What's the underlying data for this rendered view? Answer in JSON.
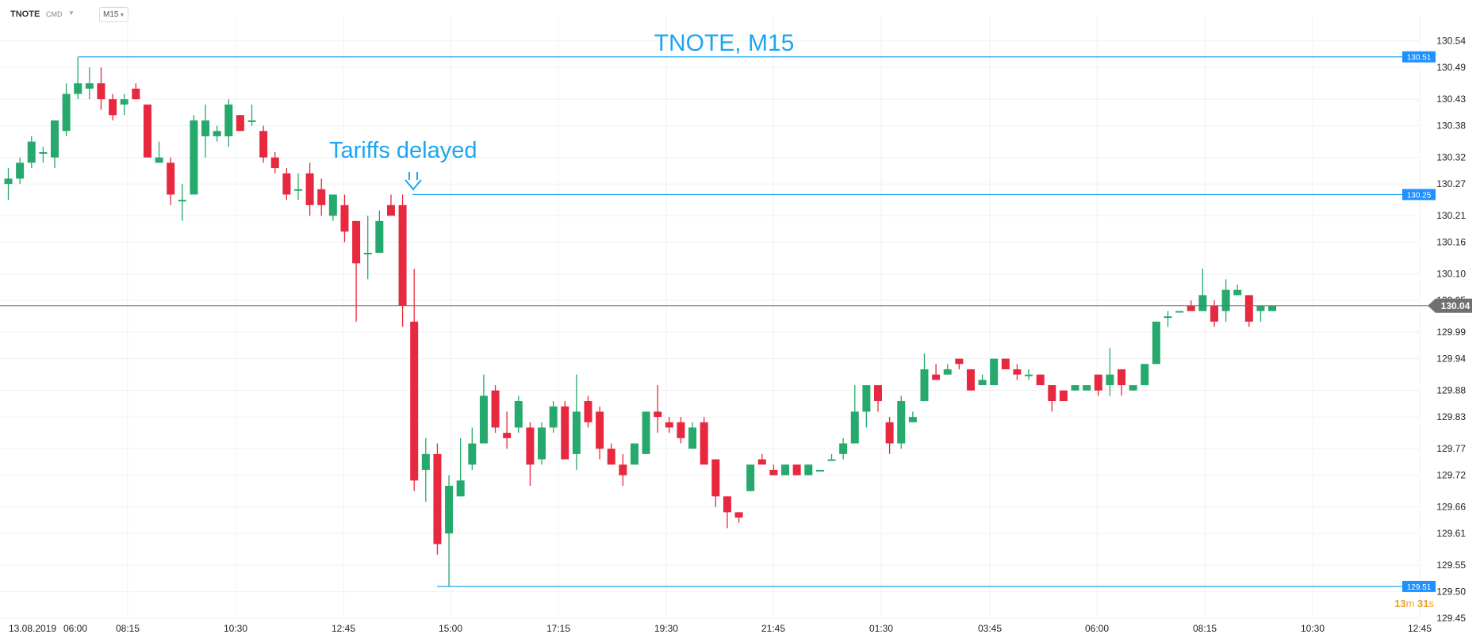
{
  "toolbar": {
    "symbol": "TNOTE",
    "market": "CMD",
    "timeframe": "M15"
  },
  "timer": {
    "minutes": "13",
    "m_unit": "m",
    "seconds": "31",
    "s_unit": "s"
  },
  "chart_data": {
    "type": "candlestick",
    "title": "TNOTE, M15",
    "ylim": [
      129.45,
      130.55
    ],
    "y_ticks": [
      "130.54",
      "130.49",
      "130.43",
      "130.38",
      "130.32",
      "130.27",
      "130.21",
      "130.16",
      "130.10",
      "130.05",
      "129.99",
      "129.94",
      "129.88",
      "129.83",
      "129.77",
      "129.72",
      "129.66",
      "129.61",
      "129.55",
      "129.50",
      "129.45"
    ],
    "x_labels": [
      "13.08.2019",
      "06:00",
      "08:15",
      "10:30",
      "12:45",
      "15:00",
      "17:15",
      "19:30",
      "21:45",
      "01:30",
      "03:45",
      "06:00",
      "08:15",
      "10:30",
      "12:45"
    ],
    "current_price": "130.04",
    "levels": [
      {
        "value": 130.51,
        "label": "130.51"
      },
      {
        "value": 130.25,
        "label": "130.25"
      },
      {
        "value": 129.51,
        "label": "129.51"
      }
    ],
    "annotation": {
      "text": "Tariffs delayed"
    },
    "colors": {
      "up": "#26a96c",
      "down": "#e8283f",
      "level": "#1ea5ef",
      "label_bg": "#1e90ff",
      "current": "#707070"
    },
    "candles": [
      {
        "o": 130.27,
        "h": 130.3,
        "l": 130.24,
        "c": 130.28
      },
      {
        "o": 130.28,
        "h": 130.32,
        "l": 130.27,
        "c": 130.31
      },
      {
        "o": 130.31,
        "h": 130.36,
        "l": 130.3,
        "c": 130.35
      },
      {
        "o": 130.33,
        "h": 130.34,
        "l": 130.31,
        "c": 130.33
      },
      {
        "o": 130.32,
        "h": 130.39,
        "l": 130.3,
        "c": 130.39
      },
      {
        "o": 130.37,
        "h": 130.46,
        "l": 130.36,
        "c": 130.44
      },
      {
        "o": 130.44,
        "h": 130.51,
        "l": 130.43,
        "c": 130.46
      },
      {
        "o": 130.45,
        "h": 130.49,
        "l": 130.43,
        "c": 130.46
      },
      {
        "o": 130.46,
        "h": 130.49,
        "l": 130.41,
        "c": 130.43
      },
      {
        "o": 130.43,
        "h": 130.44,
        "l": 130.39,
        "c": 130.4
      },
      {
        "o": 130.42,
        "h": 130.44,
        "l": 130.4,
        "c": 130.43
      },
      {
        "o": 130.45,
        "h": 130.46,
        "l": 130.43,
        "c": 130.43
      },
      {
        "o": 130.42,
        "h": 130.42,
        "l": 130.32,
        "c": 130.32
      },
      {
        "o": 130.31,
        "h": 130.35,
        "l": 130.31,
        "c": 130.32
      },
      {
        "o": 130.31,
        "h": 130.32,
        "l": 130.23,
        "c": 130.25
      },
      {
        "o": 130.24,
        "h": 130.27,
        "l": 130.2,
        "c": 130.24
      },
      {
        "o": 130.25,
        "h": 130.4,
        "l": 130.25,
        "c": 130.39
      },
      {
        "o": 130.36,
        "h": 130.42,
        "l": 130.32,
        "c": 130.39
      },
      {
        "o": 130.36,
        "h": 130.38,
        "l": 130.35,
        "c": 130.37
      },
      {
        "o": 130.36,
        "h": 130.43,
        "l": 130.34,
        "c": 130.42
      },
      {
        "o": 130.4,
        "h": 130.4,
        "l": 130.37,
        "c": 130.37
      },
      {
        "o": 130.39,
        "h": 130.42,
        "l": 130.38,
        "c": 130.39
      },
      {
        "o": 130.37,
        "h": 130.38,
        "l": 130.31,
        "c": 130.32
      },
      {
        "o": 130.32,
        "h": 130.33,
        "l": 130.29,
        "c": 130.3
      },
      {
        "o": 130.29,
        "h": 130.3,
        "l": 130.24,
        "c": 130.25
      },
      {
        "o": 130.26,
        "h": 130.29,
        "l": 130.24,
        "c": 130.26
      },
      {
        "o": 130.29,
        "h": 130.31,
        "l": 130.21,
        "c": 130.23
      },
      {
        "o": 130.26,
        "h": 130.28,
        "l": 130.21,
        "c": 130.23
      },
      {
        "o": 130.21,
        "h": 130.25,
        "l": 130.2,
        "c": 130.25
      },
      {
        "o": 130.23,
        "h": 130.25,
        "l": 130.16,
        "c": 130.18
      },
      {
        "o": 130.2,
        "h": 130.2,
        "l": 130.01,
        "c": 130.12
      },
      {
        "o": 130.14,
        "h": 130.21,
        "l": 130.09,
        "c": 130.14
      },
      {
        "o": 130.14,
        "h": 130.22,
        "l": 130.14,
        "c": 130.2
      },
      {
        "o": 130.23,
        "h": 130.25,
        "l": 130.21,
        "c": 130.21
      },
      {
        "o": 130.23,
        "h": 130.25,
        "l": 130.0,
        "c": 130.04
      },
      {
        "o": 130.01,
        "h": 130.11,
        "l": 129.69,
        "c": 129.71
      },
      {
        "o": 129.73,
        "h": 129.79,
        "l": 129.67,
        "c": 129.76
      },
      {
        "o": 129.76,
        "h": 129.78,
        "l": 129.57,
        "c": 129.59
      },
      {
        "o": 129.61,
        "h": 129.72,
        "l": 129.51,
        "c": 129.7
      },
      {
        "o": 129.68,
        "h": 129.79,
        "l": 129.68,
        "c": 129.71
      },
      {
        "o": 129.74,
        "h": 129.81,
        "l": 129.73,
        "c": 129.78
      },
      {
        "o": 129.78,
        "h": 129.91,
        "l": 129.78,
        "c": 129.87
      },
      {
        "o": 129.88,
        "h": 129.89,
        "l": 129.8,
        "c": 129.81
      },
      {
        "o": 129.8,
        "h": 129.84,
        "l": 129.77,
        "c": 129.79
      },
      {
        "o": 129.81,
        "h": 129.87,
        "l": 129.8,
        "c": 129.86
      },
      {
        "o": 129.81,
        "h": 129.82,
        "l": 129.7,
        "c": 129.74
      },
      {
        "o": 129.75,
        "h": 129.82,
        "l": 129.74,
        "c": 129.81
      },
      {
        "o": 129.81,
        "h": 129.86,
        "l": 129.8,
        "c": 129.85
      },
      {
        "o": 129.85,
        "h": 129.86,
        "l": 129.75,
        "c": 129.75
      },
      {
        "o": 129.76,
        "h": 129.91,
        "l": 129.73,
        "c": 129.84
      },
      {
        "o": 129.86,
        "h": 129.87,
        "l": 129.81,
        "c": 129.82
      },
      {
        "o": 129.84,
        "h": 129.85,
        "l": 129.75,
        "c": 129.77
      },
      {
        "o": 129.77,
        "h": 129.78,
        "l": 129.74,
        "c": 129.74
      },
      {
        "o": 129.74,
        "h": 129.76,
        "l": 129.7,
        "c": 129.72
      },
      {
        "o": 129.74,
        "h": 129.78,
        "l": 129.74,
        "c": 129.78
      },
      {
        "o": 129.76,
        "h": 129.84,
        "l": 129.76,
        "c": 129.84
      },
      {
        "o": 129.84,
        "h": 129.89,
        "l": 129.8,
        "c": 129.83
      },
      {
        "o": 129.82,
        "h": 129.83,
        "l": 129.8,
        "c": 129.81
      },
      {
        "o": 129.82,
        "h": 129.83,
        "l": 129.78,
        "c": 129.79
      },
      {
        "o": 129.77,
        "h": 129.82,
        "l": 129.77,
        "c": 129.81
      },
      {
        "o": 129.82,
        "h": 129.83,
        "l": 129.75,
        "c": 129.74
      },
      {
        "o": 129.75,
        "h": 129.75,
        "l": 129.66,
        "c": 129.68
      },
      {
        "o": 129.68,
        "h": 129.68,
        "l": 129.62,
        "c": 129.65
      },
      {
        "o": 129.65,
        "h": 129.65,
        "l": 129.63,
        "c": 129.64
      },
      {
        "o": 129.69,
        "h": 129.74,
        "l": 129.69,
        "c": 129.74
      },
      {
        "o": 129.75,
        "h": 129.76,
        "l": 129.74,
        "c": 129.74
      },
      {
        "o": 129.73,
        "h": 129.74,
        "l": 129.72,
        "c": 129.72
      },
      {
        "o": 129.72,
        "h": 129.74,
        "l": 129.72,
        "c": 129.74
      },
      {
        "o": 129.74,
        "h": 129.74,
        "l": 129.72,
        "c": 129.72
      },
      {
        "o": 129.72,
        "h": 129.74,
        "l": 129.72,
        "c": 129.74
      },
      {
        "o": 129.73,
        "h": 129.73,
        "l": 129.73,
        "c": 129.73
      },
      {
        "o": 129.75,
        "h": 129.76,
        "l": 129.75,
        "c": 129.75
      },
      {
        "o": 129.76,
        "h": 129.79,
        "l": 129.75,
        "c": 129.78
      },
      {
        "o": 129.78,
        "h": 129.89,
        "l": 129.78,
        "c": 129.84
      },
      {
        "o": 129.84,
        "h": 129.89,
        "l": 129.81,
        "c": 129.89
      },
      {
        "o": 129.89,
        "h": 129.89,
        "l": 129.84,
        "c": 129.86
      },
      {
        "o": 129.82,
        "h": 129.83,
        "l": 129.76,
        "c": 129.78
      },
      {
        "o": 129.78,
        "h": 129.87,
        "l": 129.77,
        "c": 129.86
      },
      {
        "o": 129.82,
        "h": 129.84,
        "l": 129.82,
        "c": 129.83
      },
      {
        "o": 129.86,
        "h": 129.95,
        "l": 129.86,
        "c": 129.92
      },
      {
        "o": 129.91,
        "h": 129.93,
        "l": 129.9,
        "c": 129.9
      },
      {
        "o": 129.91,
        "h": 129.93,
        "l": 129.91,
        "c": 129.92
      },
      {
        "o": 129.94,
        "h": 129.94,
        "l": 129.92,
        "c": 129.93
      },
      {
        "o": 129.92,
        "h": 129.92,
        "l": 129.88,
        "c": 129.88
      },
      {
        "o": 129.89,
        "h": 129.91,
        "l": 129.89,
        "c": 129.9
      },
      {
        "o": 129.89,
        "h": 129.94,
        "l": 129.89,
        "c": 129.94
      },
      {
        "o": 129.94,
        "h": 129.94,
        "l": 129.92,
        "c": 129.92
      },
      {
        "o": 129.92,
        "h": 129.93,
        "l": 129.9,
        "c": 129.91
      },
      {
        "o": 129.91,
        "h": 129.92,
        "l": 129.9,
        "c": 129.91
      },
      {
        "o": 129.91,
        "h": 129.91,
        "l": 129.89,
        "c": 129.89
      },
      {
        "o": 129.89,
        "h": 129.89,
        "l": 129.84,
        "c": 129.86
      },
      {
        "o": 129.88,
        "h": 129.88,
        "l": 129.86,
        "c": 129.86
      },
      {
        "o": 129.88,
        "h": 129.89,
        "l": 129.88,
        "c": 129.89
      },
      {
        "o": 129.88,
        "h": 129.89,
        "l": 129.88,
        "c": 129.89
      },
      {
        "o": 129.91,
        "h": 129.91,
        "l": 129.87,
        "c": 129.88
      },
      {
        "o": 129.89,
        "h": 129.96,
        "l": 129.87,
        "c": 129.91
      },
      {
        "o": 129.92,
        "h": 129.92,
        "l": 129.87,
        "c": 129.89
      },
      {
        "o": 129.88,
        "h": 129.89,
        "l": 129.88,
        "c": 129.89
      },
      {
        "o": 129.89,
        "h": 129.93,
        "l": 129.89,
        "c": 129.93
      },
      {
        "o": 129.93,
        "h": 130.01,
        "l": 129.93,
        "c": 130.01
      },
      {
        "o": 130.02,
        "h": 130.03,
        "l": 130.0,
        "c": 130.02
      },
      {
        "o": 130.03,
        "h": 130.03,
        "l": 130.03,
        "c": 130.03
      },
      {
        "o": 130.04,
        "h": 130.05,
        "l": 130.03,
        "c": 130.03
      },
      {
        "o": 130.03,
        "h": 130.11,
        "l": 130.03,
        "c": 130.06
      },
      {
        "o": 130.04,
        "h": 130.05,
        "l": 130.0,
        "c": 130.01
      },
      {
        "o": 130.03,
        "h": 130.09,
        "l": 130.01,
        "c": 130.07
      },
      {
        "o": 130.06,
        "h": 130.08,
        "l": 130.06,
        "c": 130.07
      },
      {
        "o": 130.06,
        "h": 130.06,
        "l": 130.0,
        "c": 130.01
      },
      {
        "o": 130.03,
        "h": 130.04,
        "l": 130.01,
        "c": 130.04
      },
      {
        "o": 130.03,
        "h": 130.04,
        "l": 130.03,
        "c": 130.04
      }
    ]
  }
}
